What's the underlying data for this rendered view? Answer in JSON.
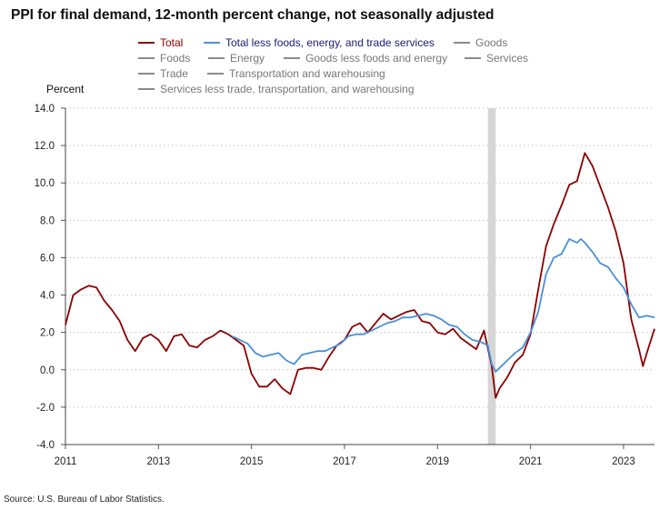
{
  "title": "PPI for final demand, 12-month percent change, not seasonally adjusted",
  "source": "Source: U.S. Bureau of Labor Statistics.",
  "legend": [
    {
      "label": "Total",
      "color": "#8b0000",
      "text_color": "#8b0000"
    },
    {
      "label": "Total less foods, energy, and trade services",
      "color": "#4a90d9",
      "text_color": "#1a1a7a"
    },
    {
      "label": "Goods",
      "color": "#8a8a8a",
      "text_color": "#777777"
    },
    {
      "label": "Foods",
      "color": "#8a8a8a",
      "text_color": "#777777"
    },
    {
      "label": "Energy",
      "color": "#8a8a8a",
      "text_color": "#777777"
    },
    {
      "label": "Goods less foods and energy",
      "color": "#8a8a8a",
      "text_color": "#777777"
    },
    {
      "label": "Services",
      "color": "#8a8a8a",
      "text_color": "#777777"
    },
    {
      "label": "Trade",
      "color": "#8a8a8a",
      "text_color": "#777777"
    },
    {
      "label": "Transportation and warehousing",
      "color": "#8a8a8a",
      "text_color": "#777777"
    },
    {
      "label": "Services less trade, transportation, and warehousing",
      "color": "#8a8a8a",
      "text_color": "#777777"
    }
  ],
  "chart_data": {
    "type": "line",
    "title": "PPI for final demand, 12-month percent change, not seasonally adjusted",
    "ylabel": "Percent",
    "xlabel": "",
    "ylim": [
      -4.0,
      14.0
    ],
    "xlim": [
      "2011-01",
      "2023-09"
    ],
    "y_ticks": [
      "14.0",
      "12.0",
      "10.0",
      "8.0",
      "6.0",
      "4.0",
      "2.0",
      "0.0",
      "-2.0",
      "-4.0"
    ],
    "x_ticks": [
      "2011",
      "2013",
      "2015",
      "2017",
      "2019",
      "2021",
      "2023"
    ],
    "grid": "horizontal dotted",
    "recession_shading": [
      "2020-02",
      "2020-04"
    ],
    "series": [
      {
        "name": "Total",
        "color": "#8b0000",
        "x": [
          "2011-01",
          "2011-03",
          "2011-05",
          "2011-07",
          "2011-09",
          "2011-11",
          "2012-01",
          "2012-03",
          "2012-05",
          "2012-07",
          "2012-09",
          "2012-11",
          "2013-01",
          "2013-03",
          "2013-05",
          "2013-07",
          "2013-09",
          "2013-11",
          "2014-01",
          "2014-03",
          "2014-05",
          "2014-07",
          "2014-09",
          "2014-11",
          "2015-01",
          "2015-03",
          "2015-05",
          "2015-07",
          "2015-09",
          "2015-11",
          "2016-01",
          "2016-03",
          "2016-05",
          "2016-07",
          "2016-09",
          "2016-11",
          "2017-01",
          "2017-03",
          "2017-05",
          "2017-07",
          "2017-09",
          "2017-11",
          "2018-01",
          "2018-03",
          "2018-05",
          "2018-07",
          "2018-09",
          "2018-11",
          "2019-01",
          "2019-03",
          "2019-05",
          "2019-07",
          "2019-09",
          "2019-11",
          "2020-01",
          "2020-03",
          "2020-04",
          "2020-05",
          "2020-07",
          "2020-09",
          "2020-11",
          "2021-01",
          "2021-03",
          "2021-05",
          "2021-07",
          "2021-09",
          "2021-11",
          "2022-01",
          "2022-03",
          "2022-05",
          "2022-07",
          "2022-09",
          "2022-11",
          "2023-01",
          "2023-03",
          "2023-05",
          "2023-06",
          "2023-07",
          "2023-09"
        ],
        "values": [
          2.4,
          4.0,
          4.3,
          4.5,
          4.4,
          3.7,
          3.2,
          2.6,
          1.6,
          1.0,
          1.7,
          1.9,
          1.6,
          1.0,
          1.8,
          1.9,
          1.3,
          1.2,
          1.6,
          1.8,
          2.1,
          1.9,
          1.6,
          1.3,
          -0.2,
          -0.9,
          -0.9,
          -0.5,
          -1.0,
          -1.3,
          0.0,
          0.1,
          0.1,
          0.0,
          0.7,
          1.3,
          1.6,
          2.3,
          2.5,
          2.0,
          2.5,
          3.0,
          2.7,
          2.9,
          3.1,
          3.2,
          2.6,
          2.5,
          2.0,
          1.9,
          2.2,
          1.7,
          1.4,
          1.1,
          2.1,
          0.2,
          -1.5,
          -1.0,
          -0.4,
          0.4,
          0.8,
          1.9,
          4.3,
          6.6,
          7.8,
          8.8,
          9.9,
          10.1,
          11.6,
          10.9,
          9.8,
          8.7,
          7.4,
          5.7,
          2.7,
          1.1,
          0.2,
          0.9,
          2.2
        ]
      },
      {
        "name": "Total less foods, energy, and trade services",
        "color": "#4a90d9",
        "x": [
          "2014-08",
          "2014-10",
          "2014-12",
          "2015-02",
          "2015-04",
          "2015-06",
          "2015-08",
          "2015-10",
          "2015-12",
          "2016-02",
          "2016-04",
          "2016-06",
          "2016-08",
          "2016-10",
          "2016-12",
          "2017-02",
          "2017-04",
          "2017-06",
          "2017-08",
          "2017-10",
          "2017-12",
          "2018-02",
          "2018-04",
          "2018-06",
          "2018-08",
          "2018-10",
          "2018-12",
          "2019-02",
          "2019-04",
          "2019-06",
          "2019-08",
          "2019-10",
          "2019-12",
          "2020-02",
          "2020-03",
          "2020-04",
          "2020-05",
          "2020-07",
          "2020-09",
          "2020-11",
          "2021-01",
          "2021-03",
          "2021-05",
          "2021-07",
          "2021-09",
          "2021-11",
          "2022-01",
          "2022-02",
          "2022-03",
          "2022-05",
          "2022-07",
          "2022-09",
          "2022-11",
          "2023-01",
          "2023-03",
          "2023-05",
          "2023-07",
          "2023-09"
        ],
        "values": [
          1.8,
          1.6,
          1.4,
          0.9,
          0.7,
          0.8,
          0.9,
          0.5,
          0.3,
          0.8,
          0.9,
          1.0,
          1.0,
          1.2,
          1.4,
          1.8,
          1.9,
          1.9,
          2.1,
          2.3,
          2.5,
          2.6,
          2.8,
          2.8,
          2.9,
          3.0,
          2.9,
          2.7,
          2.4,
          2.3,
          1.9,
          1.6,
          1.5,
          1.3,
          0.3,
          -0.1,
          0.1,
          0.5,
          0.9,
          1.2,
          2.0,
          3.1,
          5.1,
          6.0,
          6.2,
          7.0,
          6.8,
          7.0,
          6.8,
          6.3,
          5.7,
          5.5,
          4.9,
          4.4,
          3.5,
          2.8,
          2.9,
          2.8
        ]
      }
    ]
  }
}
